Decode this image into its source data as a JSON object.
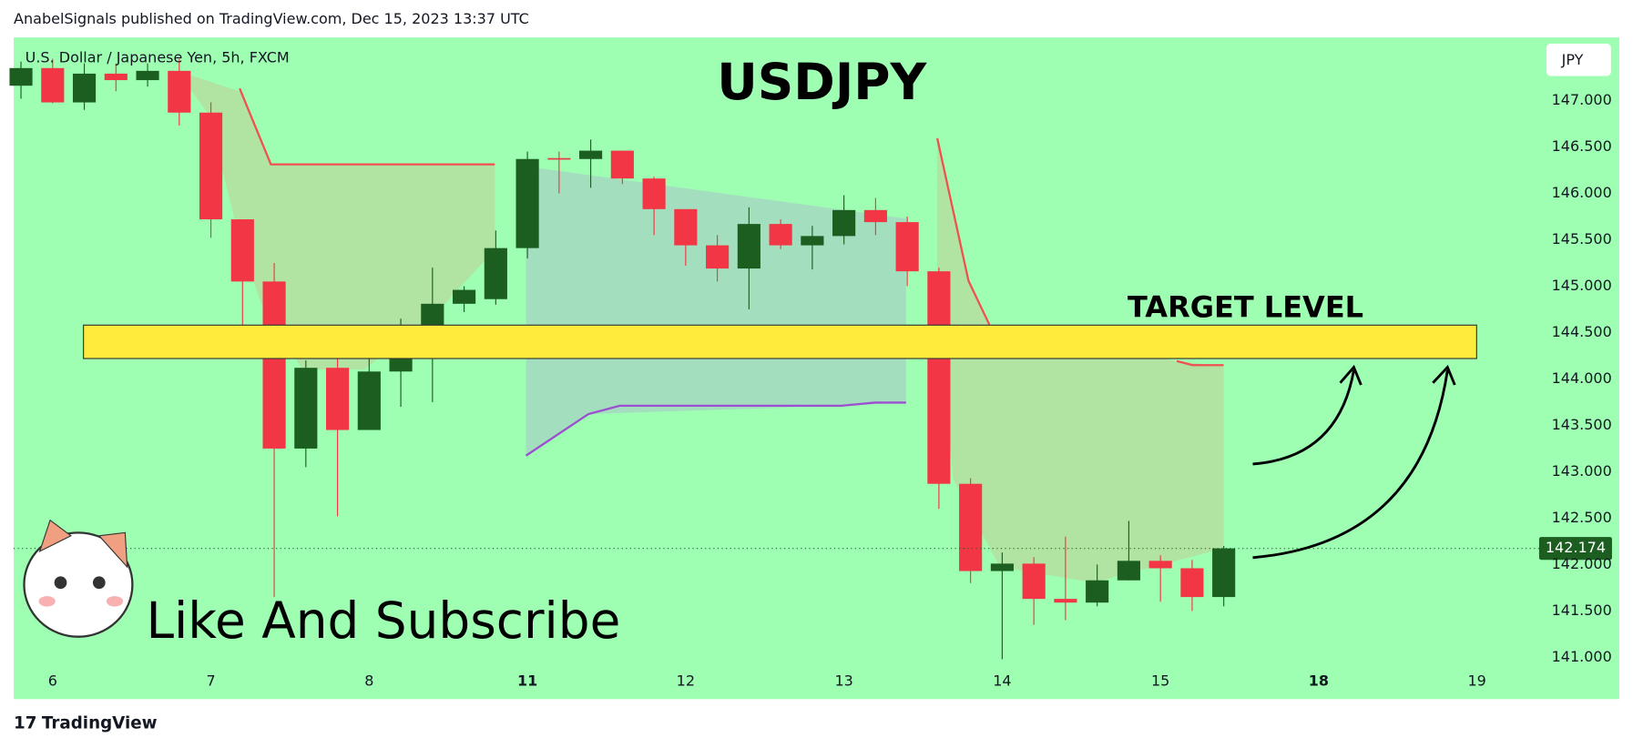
{
  "header": "AnabelSignals published on TradingView.com, Dec 15, 2023 13:37 UTC",
  "footer": "TradingView",
  "chart_data": {
    "type": "candlestick",
    "title": "USDJPY",
    "symbol": "U.S. Dollar / Japanese Yen, 5h, FXCM",
    "currency": "JPY",
    "annotations": [
      "TARGET LEVEL",
      "Like And Subscribe"
    ],
    "target_zone": [
      144.22,
      144.58
    ],
    "up_color": "#1b5e20",
    "down_color": "#f23645",
    "x": [
      0,
      1,
      2,
      3,
      4,
      5,
      6,
      7,
      8,
      9,
      10,
      11,
      12,
      13,
      14,
      15,
      16,
      17,
      18,
      19,
      20,
      21,
      22,
      23,
      24,
      25,
      26,
      27,
      28,
      29,
      30,
      31,
      32,
      33,
      34,
      35,
      36,
      37,
      38
    ],
    "open": [
      147.16,
      147.35,
      146.98,
      147.29,
      147.22,
      147.32,
      146.87,
      145.72,
      145.05,
      143.25,
      144.12,
      143.45,
      144.08,
      144.38,
      144.81,
      144.86,
      145.41,
      146.38,
      146.37,
      146.46,
      146.16,
      145.83,
      145.44,
      145.19,
      145.67,
      145.44,
      145.54,
      145.82,
      145.69,
      145.16,
      142.87,
      141.93,
      142.01,
      141.63,
      141.59,
      141.83,
      142.04,
      141.96,
      141.65
    ],
    "high": [
      147.42,
      147.45,
      147.4,
      147.4,
      147.4,
      147.45,
      146.98,
      145.72,
      145.25,
      144.2,
      144.3,
      144.35,
      144.65,
      145.2,
      145.0,
      145.6,
      146.45,
      146.45,
      146.58,
      146.46,
      146.18,
      145.83,
      145.55,
      145.85,
      145.72,
      145.65,
      145.98,
      145.95,
      145.75,
      145.2,
      142.93,
      142.13,
      142.08,
      142.3,
      142.0,
      142.47,
      142.1,
      142.05,
      142.2
    ],
    "low": [
      147.02,
      146.97,
      146.9,
      147.1,
      147.15,
      146.73,
      145.52,
      144.55,
      141.65,
      143.05,
      142.52,
      143.45,
      143.7,
      143.75,
      144.72,
      144.8,
      145.3,
      146.0,
      146.06,
      146.1,
      145.55,
      145.22,
      145.05,
      144.75,
      145.4,
      145.18,
      145.45,
      145.55,
      145.0,
      142.6,
      141.8,
      140.98,
      141.35,
      141.4,
      141.55,
      141.83,
      141.6,
      141.5,
      141.55
    ],
    "close": [
      147.35,
      146.98,
      147.29,
      147.22,
      147.32,
      146.87,
      145.72,
      145.05,
      143.25,
      144.12,
      143.45,
      144.08,
      144.38,
      144.81,
      144.96,
      145.41,
      146.37,
      146.37,
      146.46,
      146.16,
      145.83,
      145.44,
      145.19,
      145.67,
      145.44,
      145.54,
      145.82,
      145.69,
      145.16,
      142.87,
      141.93,
      142.01,
      141.63,
      141.59,
      141.83,
      142.04,
      141.96,
      141.65,
      142.174
    ],
    "xlim": [
      -0.23,
      47.7
    ],
    "xticks": [
      {
        "value": 1,
        "label": "6"
      },
      {
        "value": 6,
        "label": "7"
      },
      {
        "value": 11,
        "label": "8"
      },
      {
        "value": 16,
        "label": "11"
      },
      {
        "value": 21,
        "label": "12"
      },
      {
        "value": 26,
        "label": "13"
      },
      {
        "value": 31,
        "label": "14"
      },
      {
        "value": 36,
        "label": "15"
      },
      {
        "value": 41,
        "label": "18"
      },
      {
        "value": 46,
        "label": "19"
      }
    ],
    "ylim": [
      140.55,
      147.68
    ],
    "yticks": [
      {
        "value": 141,
        "label": "141.000"
      },
      {
        "value": 141.5,
        "label": "141.500"
      },
      {
        "value": 142,
        "label": "142.000"
      },
      {
        "value": 142.5,
        "label": "142.500"
      },
      {
        "value": 143,
        "label": "143.000"
      },
      {
        "value": 143.5,
        "label": "143.500"
      },
      {
        "value": 144,
        "label": "144.000"
      },
      {
        "value": 144.5,
        "label": "144.500"
      },
      {
        "value": 145,
        "label": "145.000"
      },
      {
        "value": 145.5,
        "label": "145.500"
      },
      {
        "value": 146,
        "label": "146.000"
      },
      {
        "value": 146.5,
        "label": "146.500"
      },
      {
        "value": 147,
        "label": "147.000"
      }
    ]
  }
}
